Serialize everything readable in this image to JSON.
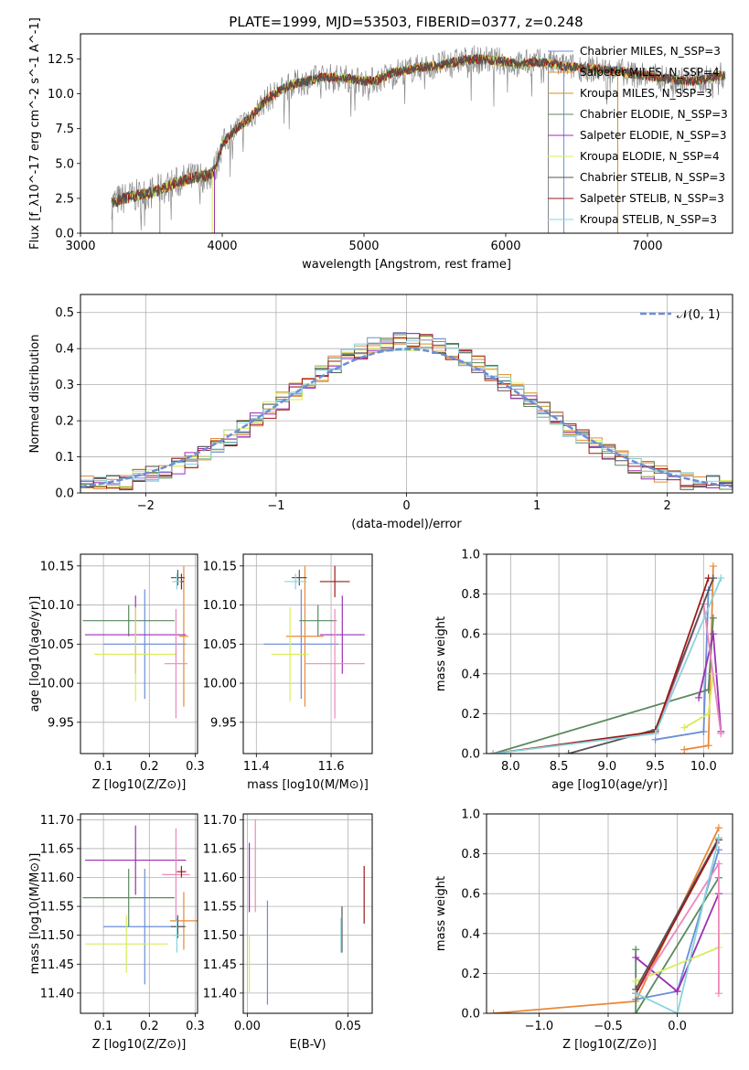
{
  "colors": {
    "chabrier_miles": "#6a8ed8",
    "salpeter_miles": "#e8893a",
    "kroupa_miles": "#d4901c",
    "chabrier_elodie": "#5a8a5e",
    "salpeter_elodie": "#9b2fb3",
    "kroupa_elodie": "#d8ec5a",
    "chabrier_stelib": "#555555",
    "salpeter_stelib": "#9e1a1a",
    "kroupa_stelib": "#88d4dc",
    "pink": "#ee88bb",
    "gray_spectrum": "#8a8a8a",
    "gauss": "#6a8ed8"
  },
  "chart_data": [
    {
      "id": "spectrum",
      "type": "line",
      "title": "PLATE=1999, MJD=53503, FIBERID=0377, z=0.248",
      "xlabel": "wavelength [Angstrom, rest frame]",
      "ylabel": "Flux [f_λ10^-17 erg cm^-2 s^-1 A^-1]",
      "xlim": [
        3000,
        7600
      ],
      "ylim": [
        0,
        14.3
      ],
      "xticks": [
        "3000",
        "4000",
        "5000",
        "6000",
        "7000"
      ],
      "yticks": [
        "0.0",
        "2.5",
        "5.0",
        "7.5",
        "10.0",
        "12.5"
      ],
      "grid": false,
      "legend_position": "upper-right",
      "legend": [
        "Chabrier MILES, N_SSP=3",
        "Salpeter MILES, N_SSP=4",
        "Kroupa MILES, N_SSP=3",
        "Chabrier ELODIE, N_SSP=3",
        "Salpeter ELODIE, N_SSP=3",
        "Kroupa ELODIE, N_SSP=4",
        "Chabrier STELIB, N_SSP=3",
        "Salpeter STELIB, N_SSP=3",
        "Kroupa STELIB, N_SSP=3"
      ],
      "continuum": {
        "x": [
          3220,
          3300,
          3400,
          3500,
          3600,
          3700,
          3800,
          3900,
          3950,
          4000,
          4100,
          4200,
          4300,
          4400,
          4500,
          4600,
          4700,
          4800,
          4900,
          5000,
          5100,
          5200,
          5300,
          5400,
          5500,
          5600,
          5700,
          5800,
          5900,
          6000,
          6100,
          6200,
          6300,
          6400,
          6500,
          6600,
          6700,
          6800,
          6900,
          7000,
          7100,
          7200,
          7300,
          7400,
          7500
        ],
        "y": [
          2.2,
          2.5,
          2.7,
          2.9,
          3.3,
          3.7,
          4.0,
          4.1,
          4.6,
          6.4,
          7.5,
          8.3,
          9.5,
          10.2,
          10.7,
          10.9,
          11.2,
          11.2,
          11.1,
          10.9,
          11.0,
          11.5,
          11.7,
          11.9,
          12.0,
          12.2,
          12.4,
          12.5,
          12.4,
          12.3,
          12.1,
          12.3,
          12.2,
          12.0,
          11.9,
          11.8,
          11.7,
          11.6,
          11.4,
          11.3,
          11.1,
          11.0,
          10.9,
          11.0,
          11.3
        ]
      },
      "drops": [
        {
          "x": 3225,
          "series": "gray"
        },
        {
          "x": 3560,
          "series": "gray"
        },
        {
          "x": 3930,
          "series": "kroupa_elodie"
        },
        {
          "x": 3945,
          "series": "salpeter_elodie"
        },
        {
          "x": 6300,
          "series": "gray"
        },
        {
          "x": 6410,
          "series": "chabrier_miles"
        },
        {
          "x": 6790,
          "series": "kroupa_miles"
        }
      ]
    },
    {
      "id": "residuals",
      "type": "line",
      "xlabel": "(data-model)/error",
      "ylabel": "Normed distribution",
      "xlim": [
        -2.5,
        2.5
      ],
      "ylim": [
        0,
        0.55
      ],
      "xticks": [
        "−2",
        "−1",
        "0",
        "1",
        "2"
      ],
      "yticks": [
        "0.0",
        "0.1",
        "0.2",
        "0.3",
        "0.4",
        "0.5"
      ],
      "grid": true,
      "legend_position": "upper-right",
      "legend": [
        "𝒩(0, 1)"
      ],
      "gaussian": {
        "mean": 0,
        "sigma": 1
      }
    },
    {
      "id": "age_vs_Z",
      "type": "scatter",
      "xlabel": "Z [log10(Z/Z⊙)]",
      "ylabel": "age  [log10(age/yr)]",
      "xlim": [
        0.05,
        0.305
      ],
      "ylim": [
        9.91,
        10.165
      ],
      "xticks": [
        "0.1",
        "0.2",
        "0.3"
      ],
      "yticks": [
        "9.95",
        "10.00",
        "10.05",
        "10.10",
        "10.15"
      ],
      "grid": true,
      "points": [
        {
          "color": "chabrier_miles",
          "x": 0.19,
          "xerr": 0.09,
          "y": 10.05,
          "yerr": 0.07
        },
        {
          "color": "salpeter_miles",
          "x": 0.275,
          "xerr": 0.01,
          "y": 10.06,
          "yerr": 0.09
        },
        {
          "color": "chabrier_elodie",
          "x": 0.155,
          "xerr": 0.1,
          "y": 10.08,
          "yerr": 0.02
        },
        {
          "color": "salpeter_elodie",
          "x": 0.17,
          "xerr": 0.11,
          "y": 10.062,
          "yerr": 0.05
        },
        {
          "color": "kroupa_elodie",
          "x": 0.17,
          "xerr": 0.09,
          "y": 10.037,
          "yerr": 0.06
        },
        {
          "color": "pink",
          "x": 0.258,
          "xerr": 0.025,
          "y": 10.025,
          "yerr": 0.07
        },
        {
          "color": "chabrier_stelib",
          "x": 0.262,
          "xerr": 0.015,
          "y": 10.135,
          "yerr": 0.01
        },
        {
          "color": "salpeter_stelib",
          "x": 0.27,
          "xerr": 0.005,
          "y": 10.13,
          "yerr": 0.01
        },
        {
          "color": "kroupa_stelib",
          "x": 0.26,
          "xerr": 0.01,
          "y": 10.13,
          "yerr": 0.01
        }
      ]
    },
    {
      "id": "age_vs_mass",
      "type": "scatter",
      "xlabel": "mass [log10(M/M⊙)]",
      "ylabel": "",
      "xlim": [
        11.365,
        11.71
      ],
      "ylim": [
        9.91,
        10.165
      ],
      "xticks": [
        "11.4",
        "11.6"
      ],
      "yticks": [
        "9.95",
        "10.00",
        "10.05",
        "10.10",
        "10.15"
      ],
      "grid": true,
      "points": [
        {
          "color": "chabrier_miles",
          "x": 11.52,
          "xerr": 0.1,
          "y": 10.05,
          "yerr": 0.07
        },
        {
          "color": "salpeter_miles",
          "x": 11.53,
          "xerr": 0.05,
          "y": 10.06,
          "yerr": 0.09
        },
        {
          "color": "chabrier_elodie",
          "x": 11.565,
          "xerr": 0.05,
          "y": 10.08,
          "yerr": 0.02
        },
        {
          "color": "salpeter_elodie",
          "x": 11.63,
          "xerr": 0.06,
          "y": 10.062,
          "yerr": 0.05
        },
        {
          "color": "kroupa_elodie",
          "x": 11.49,
          "xerr": 0.05,
          "y": 10.037,
          "yerr": 0.06
        },
        {
          "color": "pink",
          "x": 11.61,
          "xerr": 0.08,
          "y": 10.025,
          "yerr": 0.07
        },
        {
          "color": "chabrier_stelib",
          "x": 11.515,
          "xerr": 0.02,
          "y": 10.135,
          "yerr": 0.01
        },
        {
          "color": "salpeter_stelib",
          "x": 11.61,
          "xerr": 0.04,
          "y": 10.13,
          "yerr": 0.02
        },
        {
          "color": "kroupa_stelib",
          "x": 11.505,
          "xerr": 0.03,
          "y": 10.13,
          "yerr": 0.01
        }
      ]
    },
    {
      "id": "mass_weight_vs_age",
      "type": "line",
      "xlabel": "age  [log10(age/yr)]",
      "ylabel": "mass weight",
      "xlim": [
        7.75,
        10.3
      ],
      "ylim": [
        0,
        1.0
      ],
      "xticks": [
        "8.0",
        "8.5",
        "9.0",
        "9.5",
        "10.0"
      ],
      "yticks": [
        "0.0",
        "0.2",
        "0.4",
        "0.6",
        "0.8",
        "1.0"
      ],
      "grid": true,
      "series": [
        {
          "color": "chabrier_miles",
          "x": [
            9.5,
            10.0,
            10.05
          ],
          "y": [
            0.07,
            0.11,
            0.82
          ]
        },
        {
          "color": "salpeter_miles",
          "x": [
            9.8,
            10.05,
            10.1
          ],
          "y": [
            0.02,
            0.04,
            0.94
          ]
        },
        {
          "color": "chabrier_elodie",
          "x": [
            7.82,
            10.05,
            10.1
          ],
          "y": [
            0.0,
            0.32,
            0.68
          ]
        },
        {
          "color": "salpeter_elodie",
          "x": [
            9.95,
            10.1,
            10.18
          ],
          "y": [
            0.28,
            0.6,
            0.11
          ]
        },
        {
          "color": "kroupa_elodie",
          "x": [
            9.8,
            10.05,
            10.1
          ],
          "y": [
            0.13,
            0.2,
            0.4
          ]
        },
        {
          "color": "pink",
          "x": [
            9.5,
            10.0,
            10.18
          ],
          "y": [
            0.1,
            0.75,
            0.1
          ]
        },
        {
          "color": "chabrier_stelib",
          "x": [
            8.6,
            9.5,
            10.1
          ],
          "y": [
            0.0,
            0.12,
            0.88
          ]
        },
        {
          "color": "salpeter_stelib",
          "x": [
            7.82,
            9.5,
            10.05
          ],
          "y": [
            0.0,
            0.11,
            0.88
          ]
        },
        {
          "color": "kroupa_stelib",
          "x": [
            7.82,
            9.5,
            10.18
          ],
          "y": [
            0.0,
            0.1,
            0.88
          ]
        }
      ]
    },
    {
      "id": "mass_vs_Z",
      "type": "scatter",
      "xlabel": "Z [log10(Z/Z⊙)]",
      "ylabel": "mass [log10(M/M⊙)]",
      "xlim": [
        0.05,
        0.305
      ],
      "ylim": [
        11.365,
        11.71
      ],
      "xticks": [
        "0.1",
        "0.2",
        "0.3"
      ],
      "yticks": [
        "11.40",
        "11.45",
        "11.50",
        "11.55",
        "11.60",
        "11.65",
        "11.70"
      ],
      "grid": true,
      "points": [
        {
          "color": "chabrier_miles",
          "x": 0.19,
          "xerr": 0.09,
          "y": 11.515,
          "yerr": 0.1
        },
        {
          "color": "salpeter_miles",
          "x": 0.275,
          "xerr": 0.03,
          "y": 11.525,
          "yerr": 0.05
        },
        {
          "color": "chabrier_elodie",
          "x": 0.155,
          "xerr": 0.1,
          "y": 11.565,
          "yerr": 0.05
        },
        {
          "color": "salpeter_elodie",
          "x": 0.17,
          "xerr": 0.11,
          "y": 11.63,
          "yerr": 0.06
        },
        {
          "color": "kroupa_elodie",
          "x": 0.15,
          "xerr": 0.09,
          "y": 11.485,
          "yerr": 0.05
        },
        {
          "color": "pink",
          "x": 0.258,
          "xerr": 0.03,
          "y": 11.605,
          "yerr": 0.08
        },
        {
          "color": "chabrier_stelib",
          "x": 0.262,
          "xerr": 0.015,
          "y": 11.515,
          "yerr": 0.02
        },
        {
          "color": "salpeter_stelib",
          "x": 0.27,
          "xerr": 0.01,
          "y": 11.61,
          "yerr": 0.01
        },
        {
          "color": "kroupa_stelib",
          "x": 0.26,
          "xerr": 0.01,
          "y": 11.5,
          "yerr": 0.03
        }
      ]
    },
    {
      "id": "mass_vs_ebv",
      "type": "scatter",
      "xlabel": "E(B-V)",
      "ylabel": "",
      "xlim": [
        -0.002,
        0.062
      ],
      "ylim": [
        11.365,
        11.71
      ],
      "xticks": [
        "0.00",
        "0.05"
      ],
      "yticks": [
        "11.40",
        "11.45",
        "11.50",
        "11.55",
        "11.60",
        "11.65",
        "11.70"
      ],
      "grid": true,
      "points": [
        {
          "color": "chabrier_miles",
          "x": 0.01,
          "xerr": 0,
          "y": 11.47,
          "yerr": 0.09
        },
        {
          "color": "salpeter_elodie",
          "x": 0.001,
          "xerr": 0,
          "y": 11.6,
          "yerr": 0.06
        },
        {
          "color": "kroupa_elodie",
          "x": 0.001,
          "xerr": 0,
          "y": 11.45,
          "yerr": 0.05
        },
        {
          "color": "pink",
          "x": 0.004,
          "xerr": 0,
          "y": 11.62,
          "yerr": 0.08
        },
        {
          "color": "chabrier_stelib",
          "x": 0.047,
          "xerr": 0,
          "y": 11.51,
          "yerr": 0.04
        },
        {
          "color": "salpeter_stelib",
          "x": 0.058,
          "xerr": 0,
          "y": 11.57,
          "yerr": 0.05
        },
        {
          "color": "kroupa_stelib",
          "x": 0.0465,
          "xerr": 0,
          "y": 11.5,
          "yerr": 0.03
        }
      ]
    },
    {
      "id": "mass_weight_vs_Z",
      "type": "line",
      "xlabel": "Z [log10(Z/Z⊙)]",
      "ylabel": "mass weight",
      "xlim": [
        -1.38,
        0.4
      ],
      "ylim": [
        0,
        1.0
      ],
      "xticks": [
        "−1.0",
        "−0.5",
        "0.0"
      ],
      "yticks": [
        "0.0",
        "0.2",
        "0.4",
        "0.6",
        "0.8",
        "1.0"
      ],
      "grid": true,
      "series": [
        {
          "color": "salpeter_miles",
          "x": [
            -1.33,
            -0.3,
            0.3
          ],
          "y": [
            0.0,
            0.06,
            0.93
          ]
        },
        {
          "color": "chabrier_miles",
          "x": [
            -0.3,
            0.0,
            0.3
          ],
          "y": [
            0.07,
            0.11,
            0.82
          ]
        },
        {
          "color": "chabrier_elodie",
          "x": [
            -0.3,
            -0.3,
            0.3
          ],
          "y": [
            0.32,
            0.0,
            0.68
          ]
        },
        {
          "color": "salpeter_elodie",
          "x": [
            -0.3,
            0.0,
            0.3
          ],
          "y": [
            0.28,
            0.11,
            0.6
          ]
        },
        {
          "color": "kroupa_elodie",
          "x": [
            -0.3,
            0.3,
            0.3
          ],
          "y": [
            0.16,
            0.33,
            0.4
          ]
        },
        {
          "color": "pink",
          "x": [
            -0.3,
            0.3,
            0.3
          ],
          "y": [
            0.1,
            0.75,
            0.1
          ]
        },
        {
          "color": "chabrier_stelib",
          "x": [
            -0.3,
            0.3
          ],
          "y": [
            0.12,
            0.88
          ]
        },
        {
          "color": "salpeter_stelib",
          "x": [
            -0.3,
            0.3
          ],
          "y": [
            0.1,
            0.87
          ]
        },
        {
          "color": "kroupa_stelib",
          "x": [
            -0.3,
            0.0,
            0.3
          ],
          "y": [
            0.1,
            0.0,
            0.88
          ]
        }
      ]
    }
  ]
}
